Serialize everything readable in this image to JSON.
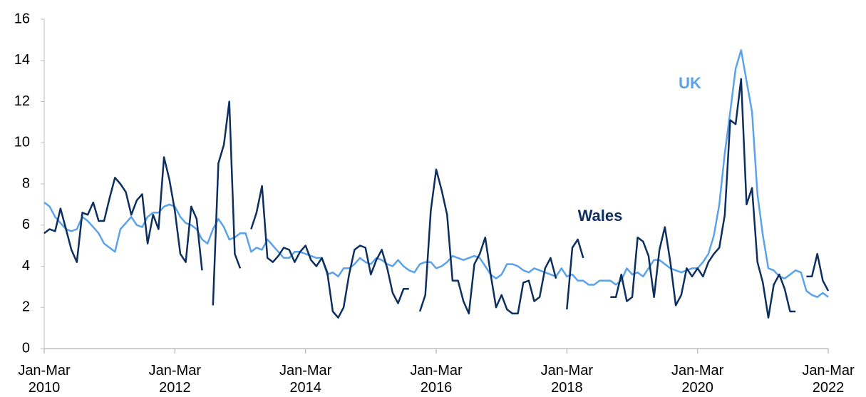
{
  "chart_data": {
    "type": "line",
    "categories": [
      "Jan-Mar\n2010",
      null,
      null,
      null,
      null,
      null,
      null,
      null,
      null,
      null,
      null,
      null,
      null,
      null,
      null,
      null,
      null,
      null,
      null,
      null,
      null,
      null,
      null,
      null,
      "Jan-Mar\n2012",
      null,
      null,
      null,
      null,
      null,
      null,
      null,
      null,
      null,
      null,
      null,
      null,
      null,
      null,
      null,
      null,
      null,
      null,
      null,
      null,
      null,
      null,
      null,
      "Jan-Mar\n2014",
      null,
      null,
      null,
      null,
      null,
      null,
      null,
      null,
      null,
      null,
      null,
      null,
      null,
      null,
      null,
      null,
      null,
      null,
      null,
      null,
      null,
      null,
      null,
      "Jan-Mar\n2016",
      null,
      null,
      null,
      null,
      null,
      null,
      null,
      null,
      null,
      null,
      null,
      null,
      null,
      null,
      null,
      null,
      null,
      null,
      null,
      null,
      null,
      null,
      null,
      "Jan-Mar\n2018",
      null,
      null,
      null,
      null,
      null,
      null,
      null,
      null,
      null,
      null,
      null,
      null,
      null,
      null,
      null,
      null,
      null,
      null,
      null,
      null,
      null,
      null,
      null,
      "Jan-Mar\n2020",
      null,
      null,
      null,
      null,
      null,
      null,
      null,
      null,
      null,
      null,
      null,
      null,
      null,
      null,
      null,
      null,
      null,
      null,
      null,
      null,
      null,
      null,
      null,
      "Jan-Mar\n2022"
    ],
    "series": [
      {
        "name": "UK",
        "color": "#5aa2ea",
        "values": [
          7.1,
          6.9,
          6.4,
          6.1,
          5.8,
          5.7,
          5.8,
          6.4,
          6.2,
          5.9,
          5.6,
          5.1,
          4.9,
          4.7,
          5.8,
          6.1,
          6.4,
          6.0,
          5.9,
          6.4,
          6.6,
          6.6,
          6.9,
          7.0,
          6.9,
          6.4,
          6.1,
          6.0,
          5.8,
          5.3,
          5.1,
          5.8,
          6.3,
          5.9,
          5.3,
          5.4,
          5.6,
          5.6,
          4.7,
          4.9,
          4.8,
          5.3,
          5.0,
          4.7,
          4.4,
          4.4,
          4.7,
          4.7,
          4.6,
          4.5,
          4.4,
          4.4,
          3.6,
          3.7,
          3.5,
          3.9,
          3.9,
          4.1,
          4.4,
          4.2,
          4.1,
          4.4,
          4.3,
          4.1,
          4.0,
          4.3,
          4.0,
          3.8,
          3.7,
          4.1,
          4.2,
          4.2,
          3.9,
          4.0,
          4.2,
          4.5,
          4.4,
          4.3,
          4.4,
          4.5,
          4.4,
          4.0,
          3.6,
          3.4,
          3.6,
          4.1,
          4.1,
          4.0,
          3.8,
          3.7,
          3.9,
          3.8,
          3.7,
          3.6,
          3.5,
          3.9,
          3.5,
          3.6,
          3.3,
          3.3,
          3.1,
          3.1,
          3.3,
          3.3,
          3.3,
          3.1,
          3.3,
          3.9,
          3.6,
          3.7,
          3.5,
          3.9,
          4.3,
          4.3,
          4.1,
          3.9,
          3.8,
          3.7,
          3.8,
          3.9,
          3.9,
          4.2,
          4.6,
          5.5,
          7.0,
          9.5,
          11.5,
          13.6,
          14.5,
          13.0,
          11.5,
          7.5,
          5.5,
          3.9,
          3.8,
          3.5,
          3.4,
          3.6,
          3.8,
          3.7,
          2.8,
          2.6,
          2.5,
          2.7,
          2.5
        ]
      },
      {
        "name": "Wales",
        "color": "#0d2f5f",
        "values": [
          5.6,
          5.8,
          5.7,
          6.8,
          5.8,
          4.8,
          4.2,
          6.6,
          6.5,
          7.1,
          6.2,
          6.2,
          7.3,
          8.3,
          8.0,
          7.6,
          6.5,
          7.2,
          7.5,
          5.1,
          6.5,
          5.8,
          9.3,
          8.2,
          6.7,
          4.6,
          4.2,
          6.9,
          6.3,
          3.8,
          null,
          2.1,
          9.0,
          9.9,
          12.0,
          4.6,
          3.9,
          null,
          5.8,
          6.6,
          7.9,
          4.4,
          4.2,
          4.5,
          4.9,
          4.8,
          4.2,
          4.7,
          5.0,
          4.3,
          4.0,
          4.4,
          3.7,
          1.8,
          1.5,
          2.0,
          3.6,
          4.8,
          5.0,
          4.9,
          3.6,
          4.3,
          4.8,
          3.9,
          2.7,
          2.2,
          2.9,
          2.9,
          null,
          1.8,
          2.6,
          6.7,
          8.7,
          7.7,
          6.5,
          3.3,
          3.3,
          2.3,
          1.7,
          4.1,
          4.6,
          5.4,
          3.6,
          2.0,
          2.6,
          1.9,
          1.7,
          1.7,
          3.2,
          3.3,
          2.3,
          2.5,
          3.9,
          4.4,
          3.4,
          null,
          1.9,
          4.9,
          5.3,
          4.4,
          null,
          null,
          null,
          null,
          2.5,
          2.5,
          3.6,
          2.3,
          2.5,
          5.4,
          5.2,
          4.5,
          2.5,
          4.8,
          5.9,
          4.2,
          2.1,
          2.6,
          3.9,
          3.5,
          3.9,
          3.5,
          4.2,
          4.6,
          4.9,
          6.5,
          11.1,
          10.9,
          13.1,
          7.0,
          7.8,
          4.2,
          3.2,
          1.5,
          3.1,
          3.6,
          2.9,
          1.8,
          1.8,
          null,
          3.5,
          3.5,
          4.6,
          3.3,
          2.8
        ]
      }
    ],
    "ylim": [
      0,
      16
    ],
    "yticks": [
      0,
      2,
      4,
      6,
      8,
      10,
      12,
      14,
      16
    ],
    "grid": false
  }
}
